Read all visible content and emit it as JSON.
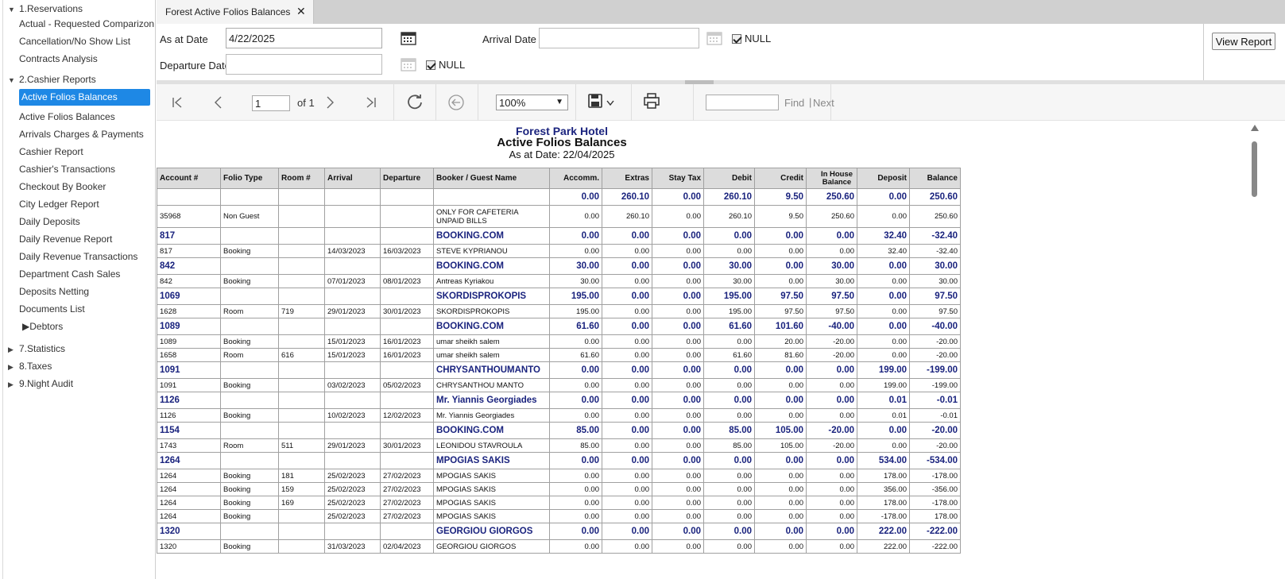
{
  "sidebar": {
    "groups": {
      "reservations": "1.Reservations",
      "cashier": "2.Cashier Reports",
      "statistics": "7.Statistics",
      "taxes": "8.Taxes",
      "night_audit": "9.Night Audit",
      "debtors": "Debtors"
    },
    "reservations_items": [
      "Actual - Requested Comparizon",
      "Cancellation/No Show List",
      "Contracts Analysis"
    ],
    "cashier_active": "Active Folios Balances",
    "cashier_items": [
      "Active Folios Balances",
      "Arrivals Charges & Payments",
      "Cashier Report",
      "Cashier's Transactions",
      "Checkout By Booker",
      "City Ledger Report",
      "Daily Deposits",
      "Daily Revenue Report",
      "Daily Revenue Transactions",
      "Department Cash Sales",
      "Deposits Netting",
      "Documents List"
    ]
  },
  "tab": {
    "title": "Forest Active Folios Balances",
    "close": "✕"
  },
  "params": {
    "as_at_label": "As at Date",
    "as_at_value": "4/22/2025",
    "arrival_label": "Arrival Date",
    "arrival_value": "",
    "departure_label": "Departure Date",
    "departure_value": "",
    "null_label": "NULL",
    "view_report": "View Report"
  },
  "toolbar": {
    "page": "1",
    "of": "of 1",
    "zoom": "100%",
    "find": "Find",
    "next": "Next",
    "find_sep": "|"
  },
  "report": {
    "hotel": "Forest Park Hotel",
    "title": "Active Folios Balances",
    "as_at": "As at Date: 22/04/2025",
    "columns": [
      "Account #",
      "Folio Type",
      "Room #",
      "Arrival",
      "Departure",
      "Booker / Guest Name",
      "Accomm.",
      "Extras",
      "Stay Tax",
      "Debit",
      "Credit",
      "In House Balance",
      "Deposit",
      "Balance"
    ],
    "rows": [
      {
        "t": "grp",
        "c": [
          "",
          "",
          "",
          "",
          "",
          "",
          "0.00",
          "260.10",
          "0.00",
          "260.10",
          "9.50",
          "250.60",
          "0.00",
          "250.60"
        ]
      },
      {
        "t": "det tall",
        "c": [
          "35968",
          "Non Guest",
          "",
          "",
          "",
          "ONLY FOR CAFETERIA UNPAID BILLS",
          "0.00",
          "260.10",
          "0.00",
          "260.10",
          "9.50",
          "250.60",
          "0.00",
          "250.60"
        ]
      },
      {
        "t": "grp",
        "c": [
          "817",
          "",
          "",
          "",
          "",
          "BOOKING.COM",
          "0.00",
          "0.00",
          "0.00",
          "0.00",
          "0.00",
          "0.00",
          "32.40",
          "-32.40"
        ]
      },
      {
        "t": "det",
        "c": [
          "817",
          "Booking",
          "",
          "14/03/2023",
          "16/03/2023",
          "STEVE KYPRIANOU",
          "0.00",
          "0.00",
          "0.00",
          "0.00",
          "0.00",
          "0.00",
          "32.40",
          "-32.40"
        ]
      },
      {
        "t": "grp",
        "c": [
          "842",
          "",
          "",
          "",
          "",
          "BOOKING.COM",
          "30.00",
          "0.00",
          "0.00",
          "30.00",
          "0.00",
          "30.00",
          "0.00",
          "30.00"
        ]
      },
      {
        "t": "det",
        "c": [
          "842",
          "Booking",
          "",
          "07/01/2023",
          "08/01/2023",
          "Antreas Kyriakou",
          "30.00",
          "0.00",
          "0.00",
          "30.00",
          "0.00",
          "30.00",
          "0.00",
          "30.00"
        ]
      },
      {
        "t": "grp",
        "c": [
          "1069",
          "",
          "",
          "",
          "",
          "SKORDISPROKOPIS",
          "195.00",
          "0.00",
          "0.00",
          "195.00",
          "97.50",
          "97.50",
          "0.00",
          "97.50"
        ]
      },
      {
        "t": "det",
        "c": [
          "1628",
          "Room",
          "719",
          "29/01/2023",
          "30/01/2023",
          "SKORDISPROKOPIS",
          "195.00",
          "0.00",
          "0.00",
          "195.00",
          "97.50",
          "97.50",
          "0.00",
          "97.50"
        ]
      },
      {
        "t": "grp",
        "c": [
          "1089",
          "",
          "",
          "",
          "",
          "BOOKING.COM",
          "61.60",
          "0.00",
          "0.00",
          "61.60",
          "101.60",
          "-40.00",
          "0.00",
          "-40.00"
        ]
      },
      {
        "t": "det",
        "c": [
          "1089",
          "Booking",
          "",
          "15/01/2023",
          "16/01/2023",
          "umar sheikh salem",
          "0.00",
          "0.00",
          "0.00",
          "0.00",
          "20.00",
          "-20.00",
          "0.00",
          "-20.00"
        ]
      },
      {
        "t": "det",
        "c": [
          "1658",
          "Room",
          "616",
          "15/01/2023",
          "16/01/2023",
          "umar sheikh salem",
          "61.60",
          "0.00",
          "0.00",
          "61.60",
          "81.60",
          "-20.00",
          "0.00",
          "-20.00"
        ]
      },
      {
        "t": "grp",
        "c": [
          "1091",
          "",
          "",
          "",
          "",
          "CHRYSANTHOUMANTO",
          "0.00",
          "0.00",
          "0.00",
          "0.00",
          "0.00",
          "0.00",
          "199.00",
          "-199.00"
        ]
      },
      {
        "t": "det",
        "c": [
          "1091",
          "Booking",
          "",
          "03/02/2023",
          "05/02/2023",
          "CHRYSANTHOU MANTO",
          "0.00",
          "0.00",
          "0.00",
          "0.00",
          "0.00",
          "0.00",
          "199.00",
          "-199.00"
        ]
      },
      {
        "t": "grp",
        "c": [
          "1126",
          "",
          "",
          "",
          "",
          "Mr. Yiannis Georgiades",
          "0.00",
          "0.00",
          "0.00",
          "0.00",
          "0.00",
          "0.00",
          "0.01",
          "-0.01"
        ]
      },
      {
        "t": "det",
        "c": [
          "1126",
          "Booking",
          "",
          "10/02/2023",
          "12/02/2023",
          "Mr. Yiannis Georgiades",
          "0.00",
          "0.00",
          "0.00",
          "0.00",
          "0.00",
          "0.00",
          "0.01",
          "-0.01"
        ]
      },
      {
        "t": "grp",
        "c": [
          "1154",
          "",
          "",
          "",
          "",
          "BOOKING.COM",
          "85.00",
          "0.00",
          "0.00",
          "85.00",
          "105.00",
          "-20.00",
          "0.00",
          "-20.00"
        ]
      },
      {
        "t": "det",
        "c": [
          "1743",
          "Room",
          "511",
          "29/01/2023",
          "30/01/2023",
          "LEONIDOU STAVROULA",
          "85.00",
          "0.00",
          "0.00",
          "85.00",
          "105.00",
          "-20.00",
          "0.00",
          "-20.00"
        ]
      },
      {
        "t": "grp",
        "c": [
          "1264",
          "",
          "",
          "",
          "",
          "MPOGIAS SAKIS",
          "0.00",
          "0.00",
          "0.00",
          "0.00",
          "0.00",
          "0.00",
          "534.00",
          "-534.00"
        ]
      },
      {
        "t": "det",
        "c": [
          "1264",
          "Booking",
          "181",
          "25/02/2023",
          "27/02/2023",
          "MPOGIAS SAKIS",
          "0.00",
          "0.00",
          "0.00",
          "0.00",
          "0.00",
          "0.00",
          "178.00",
          "-178.00"
        ]
      },
      {
        "t": "det",
        "c": [
          "1264",
          "Booking",
          "159",
          "25/02/2023",
          "27/02/2023",
          "MPOGIAS SAKIS",
          "0.00",
          "0.00",
          "0.00",
          "0.00",
          "0.00",
          "0.00",
          "356.00",
          "-356.00"
        ]
      },
      {
        "t": "det",
        "c": [
          "1264",
          "Booking",
          "169",
          "25/02/2023",
          "27/02/2023",
          "MPOGIAS SAKIS",
          "0.00",
          "0.00",
          "0.00",
          "0.00",
          "0.00",
          "0.00",
          "178.00",
          "-178.00"
        ]
      },
      {
        "t": "det",
        "c": [
          "1264",
          "Booking",
          "",
          "25/02/2023",
          "27/02/2023",
          "MPOGIAS SAKIS",
          "0.00",
          "0.00",
          "0.00",
          "0.00",
          "0.00",
          "0.00",
          "-178.00",
          "178.00"
        ]
      },
      {
        "t": "grp",
        "c": [
          "1320",
          "",
          "",
          "",
          "",
          "GEORGIOU GIORGOS",
          "0.00",
          "0.00",
          "0.00",
          "0.00",
          "0.00",
          "0.00",
          "222.00",
          "-222.00"
        ]
      },
      {
        "t": "det",
        "c": [
          "1320",
          "Booking",
          "",
          "31/03/2023",
          "02/04/2023",
          "GEORGIOU GIORGOS",
          "0.00",
          "0.00",
          "0.00",
          "0.00",
          "0.00",
          "0.00",
          "222.00",
          "-222.00"
        ]
      }
    ]
  }
}
